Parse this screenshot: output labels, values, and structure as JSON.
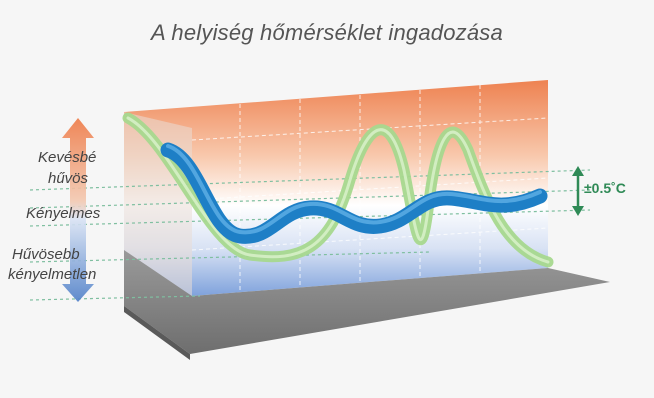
{
  "title": "A helyiség hőmérséklet ingadozása",
  "labels": {
    "less_cool_line1": "Kevésbé",
    "less_cool_line2": "hűvös",
    "comfortable": "Kényelmes",
    "cooler_line1": "Hűvösebb",
    "cooler_line2": "kényelmetlen"
  },
  "tolerance": "±0.5˚C",
  "colors": {
    "warm": "#ee7a46",
    "cool": "#4e7fc8",
    "blue_ribbon": "#1e7fc6",
    "green_ribbon": "#a6d88e",
    "floor": "#7c7c7c",
    "tolerance": "#2f8a56"
  }
}
